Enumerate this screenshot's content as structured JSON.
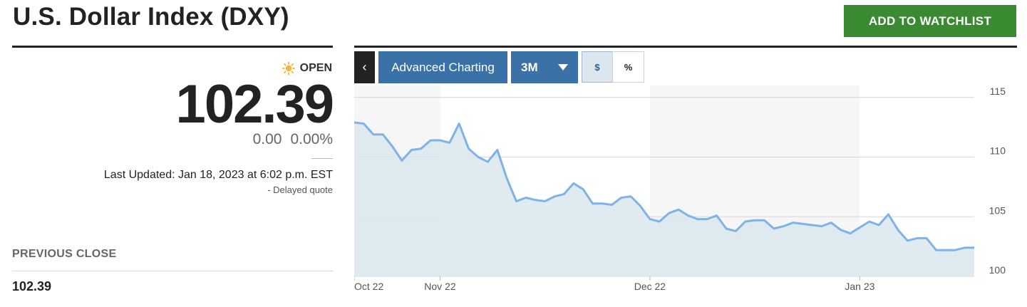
{
  "header": {
    "title": "U.S. Dollar Index (DXY)",
    "watchlist_label": "ADD TO WATCHLIST",
    "watchlist_color": "#3a8a32"
  },
  "quote": {
    "status_icon": "sun-icon",
    "status": "OPEN",
    "price": "102.39",
    "change": "0.00",
    "change_percent": "0.00%",
    "last_updated": "Last Updated: Jan 18, 2023 at 6:02 p.m. EST",
    "delayed": "-  Delayed quote"
  },
  "previous_close": {
    "label": "PREVIOUS CLOSE",
    "value": "102.39"
  },
  "toolbar": {
    "back_label": "‹",
    "advanced_label": "Advanced Charting",
    "range_label": "3M",
    "dollar_label": "$",
    "percent_label": "%"
  },
  "chart_data": {
    "type": "area",
    "line_color": "#7fb2e5",
    "fill_color": "#dbe7ef",
    "y_ticks": [
      "115",
      "110",
      "105",
      "100"
    ],
    "ylim": [
      100,
      116
    ],
    "x_ticks": [
      "Oct 22",
      "Nov 22",
      "Dec 22",
      "Jan 23"
    ],
    "x_tick_index": [
      0,
      9,
      31,
      53
    ],
    "shaded_month_bands": [
      [
        9,
        31
      ],
      [
        53,
        65
      ]
    ],
    "values": [
      112.9,
      112.8,
      111.9,
      111.9,
      110.9,
      109.7,
      110.6,
      110.7,
      111.4,
      111.4,
      111.2,
      112.8,
      110.7,
      110.0,
      109.6,
      110.6,
      108.2,
      106.3,
      106.6,
      106.4,
      106.3,
      106.7,
      106.9,
      107.8,
      107.3,
      106.1,
      106.1,
      106.0,
      106.6,
      106.7,
      105.9,
      104.8,
      104.6,
      105.3,
      105.6,
      105.1,
      104.8,
      104.8,
      105.1,
      104.0,
      103.8,
      104.6,
      104.7,
      104.7,
      104.0,
      104.2,
      104.5,
      104.4,
      104.3,
      104.2,
      104.5,
      103.9,
      103.6,
      104.1,
      104.6,
      104.3,
      105.2,
      103.9,
      103.0,
      103.2,
      103.2,
      102.2,
      102.2,
      102.2,
      102.4,
      102.4
    ]
  }
}
